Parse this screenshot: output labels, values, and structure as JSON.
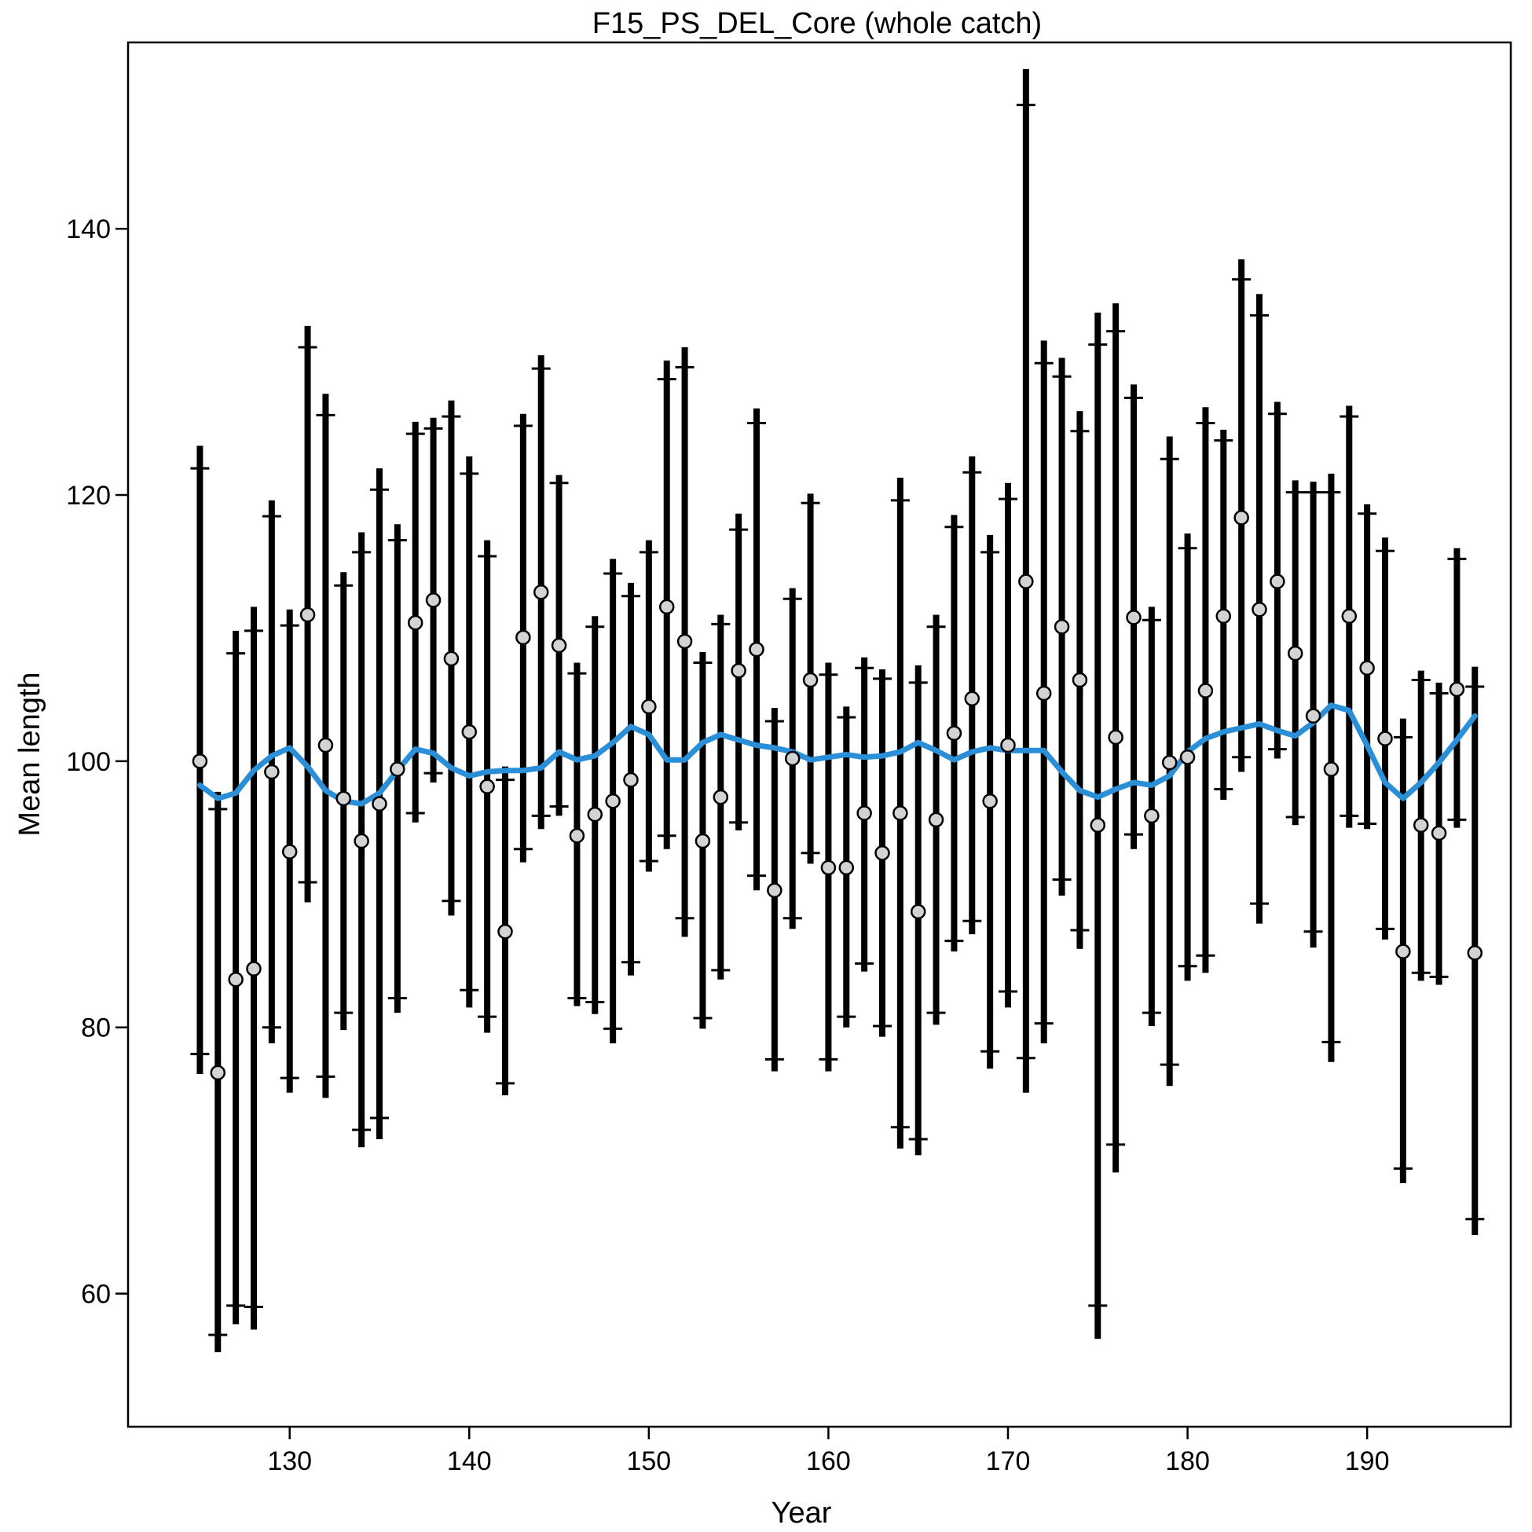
{
  "chart_data": {
    "type": "scatter",
    "title": "F15_PS_DEL_Core (whole catch)",
    "xlabel": "Year",
    "ylabel": "Mean length",
    "xlim": [
      121,
      198
    ],
    "ylim": [
      50,
      154
    ],
    "x_ticks": [
      130,
      140,
      150,
      160,
      170,
      180,
      190
    ],
    "y_ticks": [
      60,
      80,
      100,
      120,
      140
    ],
    "grid": false,
    "legend": "none",
    "colors": {
      "bars": "#000000",
      "points_fill": "#d3d3d3",
      "points_stroke": "#000000",
      "smoother": "#2b8fd8"
    },
    "series": [
      {
        "kind": "observed",
        "years": [
          125,
          126,
          127,
          128,
          129,
          130,
          131,
          132,
          133,
          134,
          135,
          136,
          137,
          138,
          139,
          140,
          141,
          142,
          143,
          144,
          145,
          146,
          147,
          148,
          149,
          150,
          151,
          152,
          153,
          154,
          155,
          156,
          157,
          158,
          159,
          160,
          161,
          162,
          163,
          164,
          165,
          166,
          167,
          168,
          169,
          170,
          171,
          172,
          173,
          174,
          175,
          176,
          177,
          178,
          179,
          180,
          181,
          182,
          183,
          184,
          185,
          186,
          187,
          188,
          189,
          190,
          191,
          192,
          193,
          194,
          195,
          196
        ],
        "mean": [
          100.0,
          76.6,
          83.6,
          84.4,
          99.2,
          93.2,
          111.0,
          101.2,
          97.2,
          94.0,
          96.8,
          99.4,
          110.4,
          112.1,
          107.7,
          102.2,
          98.1,
          87.2,
          109.3,
          112.7,
          108.7,
          94.4,
          96.0,
          97.0,
          98.6,
          104.1,
          111.6,
          109.0,
          94.0,
          97.3,
          106.8,
          108.4,
          90.3,
          100.2,
          106.1,
          92.0,
          92.0,
          96.1,
          93.1,
          96.1,
          88.7,
          95.6,
          102.1,
          104.7,
          97.0,
          101.2,
          113.5,
          105.1,
          110.1,
          106.1,
          95.2,
          101.8,
          110.8,
          95.9,
          99.9,
          100.3,
          105.3,
          110.9,
          118.3,
          111.4,
          113.5,
          108.1,
          103.4,
          99.4,
          110.9,
          107.0,
          101.7,
          85.7,
          95.2,
          94.6,
          105.4,
          85.6
        ],
        "lower_inner": [
          78.0,
          56.9,
          59.1,
          59.0,
          80.0,
          76.2,
          90.9,
          76.3,
          81.1,
          72.3,
          73.2,
          82.2,
          96.1,
          99.1,
          89.5,
          82.8,
          80.8,
          75.8,
          93.4,
          95.9,
          96.6,
          82.2,
          81.9,
          79.9,
          84.9,
          92.5,
          94.4,
          88.2,
          80.7,
          84.3,
          95.4,
          91.4,
          77.6,
          88.2,
          93.1,
          77.6,
          80.8,
          84.8,
          80.1,
          72.5,
          71.6,
          81.1,
          86.5,
          88.0,
          78.2,
          82.7,
          77.7,
          80.3,
          91.1,
          87.3,
          59.1,
          71.2,
          94.5,
          81.1,
          77.2,
          84.6,
          85.4,
          97.9,
          100.3,
          89.3,
          100.9,
          95.8,
          87.2,
          78.9,
          95.9,
          95.3,
          87.4,
          69.4,
          84.1,
          83.8,
          95.6,
          65.6
        ],
        "upper_inner": [
          122.0,
          96.4,
          108.1,
          109.8,
          118.4,
          110.2,
          131.1,
          126.0,
          113.2,
          115.7,
          120.4,
          116.6,
          124.6,
          125.0,
          125.9,
          121.6,
          115.4,
          98.6,
          125.2,
          129.5,
          120.9,
          106.6,
          110.1,
          114.1,
          112.4,
          115.7,
          128.7,
          129.6,
          107.4,
          110.3,
          117.4,
          125.4,
          103.0,
          112.2,
          119.4,
          106.5,
          103.3,
          107.0,
          106.2,
          119.6,
          105.9,
          110.1,
          117.6,
          121.7,
          115.7,
          119.7,
          149.3,
          129.9,
          128.9,
          124.8,
          131.3,
          132.3,
          127.3,
          110.6,
          122.7,
          116.0,
          125.4,
          124.1,
          136.2,
          133.5,
          126.1,
          120.2,
          120.2,
          120.2,
          125.9,
          118.6,
          115.8,
          101.8,
          106.1,
          105.1,
          115.2,
          105.6
        ],
        "lower_outer": [
          76.5,
          55.6,
          57.7,
          57.3,
          78.8,
          75.1,
          89.4,
          74.7,
          79.8,
          71.0,
          71.6,
          81.1,
          95.4,
          98.4,
          88.4,
          81.5,
          79.6,
          74.9,
          92.4,
          94.9,
          95.9,
          81.6,
          81.0,
          78.8,
          83.9,
          91.7,
          93.4,
          86.8,
          79.9,
          83.6,
          94.8,
          90.3,
          76.7,
          87.4,
          92.3,
          76.7,
          80.0,
          84.2,
          79.3,
          70.9,
          70.4,
          80.2,
          85.7,
          87.0,
          76.9,
          81.5,
          75.1,
          78.8,
          89.9,
          85.9,
          56.6,
          69.1,
          93.4,
          80.1,
          75.6,
          83.5,
          84.1,
          97.1,
          99.2,
          87.8,
          100.2,
          95.2,
          86.0,
          77.4,
          95.0,
          94.9,
          86.6,
          68.3,
          83.5,
          83.2,
          95.0,
          64.4
        ],
        "upper_outer": [
          123.7,
          97.7,
          109.8,
          111.6,
          119.6,
          111.4,
          132.7,
          127.6,
          114.2,
          117.2,
          122.0,
          117.8,
          125.5,
          125.8,
          127.1,
          122.9,
          116.6,
          99.6,
          126.1,
          130.5,
          121.5,
          107.4,
          110.9,
          115.2,
          113.4,
          116.6,
          130.1,
          131.1,
          108.2,
          111.0,
          118.6,
          126.5,
          104.0,
          113.0,
          120.1,
          107.4,
          104.1,
          107.8,
          106.9,
          121.3,
          107.2,
          111.0,
          118.5,
          122.9,
          117.0,
          120.9,
          152.0,
          131.6,
          130.3,
          126.3,
          133.7,
          134.4,
          128.3,
          111.6,
          124.4,
          117.1,
          126.6,
          124.9,
          137.7,
          135.1,
          127.0,
          121.1,
          121.0,
          121.6,
          126.7,
          119.3,
          116.8,
          103.2,
          106.8,
          105.9,
          116.0,
          107.1
        ]
      },
      {
        "kind": "smoother",
        "years": [
          125,
          126,
          127,
          128,
          129,
          130,
          131,
          132,
          133,
          134,
          135,
          136,
          137,
          138,
          139,
          140,
          141,
          142,
          143,
          144,
          145,
          146,
          147,
          148,
          149,
          150,
          151,
          152,
          153,
          154,
          155,
          156,
          157,
          158,
          159,
          160,
          161,
          162,
          163,
          164,
          165,
          166,
          167,
          168,
          169,
          170,
          171,
          172,
          173,
          174,
          175,
          176,
          177,
          178,
          179,
          180,
          181,
          182,
          183,
          184,
          185,
          186,
          187,
          188,
          189,
          190,
          191,
          192,
          193,
          194,
          195,
          196
        ],
        "values": [
          98.2,
          97.2,
          97.6,
          99.3,
          100.4,
          101.0,
          99.6,
          97.8,
          97.0,
          96.8,
          97.6,
          99.3,
          100.9,
          100.6,
          99.5,
          98.9,
          99.2,
          99.3,
          99.3,
          99.5,
          100.7,
          100.1,
          100.4,
          101.4,
          102.6,
          102.0,
          100.1,
          100.1,
          101.4,
          102.0,
          101.6,
          101.2,
          101.0,
          100.7,
          100.1,
          100.3,
          100.5,
          100.3,
          100.4,
          100.7,
          101.4,
          100.8,
          100.1,
          100.7,
          101.0,
          100.8,
          100.8,
          100.8,
          99.2,
          97.8,
          97.3,
          97.9,
          98.4,
          98.2,
          98.9,
          100.7,
          101.7,
          102.2,
          102.5,
          102.8,
          102.3,
          101.9,
          102.9,
          104.2,
          103.8,
          101.2,
          98.4,
          97.2,
          98.4,
          99.9,
          101.6,
          103.4
        ]
      }
    ]
  }
}
